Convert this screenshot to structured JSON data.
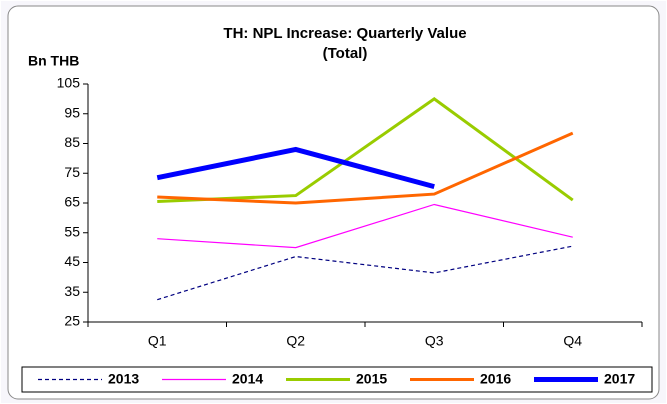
{
  "chart_data": {
    "type": "line",
    "title": [
      "TH: NPL Increase: Quarterly Value",
      "(Total)"
    ],
    "y_axis_label": "Bn THB",
    "categories": [
      "Q1",
      "Q2",
      "Q3",
      "Q4"
    ],
    "series": [
      {
        "name": "2013",
        "color": "#000080",
        "line_width": 1.2,
        "dash": true,
        "values": [
          32.5,
          47,
          41.5,
          50.5
        ]
      },
      {
        "name": "2014",
        "color": "#ff00ff",
        "line_width": 1.2,
        "dash": false,
        "values": [
          53,
          50,
          64.5,
          53.5
        ]
      },
      {
        "name": "2015",
        "color": "#99cc00",
        "line_width": 3,
        "dash": false,
        "values": [
          65.5,
          67.5,
          100,
          66
        ]
      },
      {
        "name": "2016",
        "color": "#ff6600",
        "line_width": 3,
        "dash": false,
        "values": [
          67,
          65,
          68,
          88.5
        ]
      },
      {
        "name": "2017",
        "color": "#0000ff",
        "line_width": 5,
        "dash": false,
        "values": [
          73.5,
          83,
          70.5,
          null
        ]
      }
    ],
    "ylim": [
      25,
      105
    ],
    "yticks": [
      25,
      35,
      45,
      55,
      65,
      75,
      85,
      95,
      105
    ],
    "grid": false,
    "legend": "bottom"
  }
}
